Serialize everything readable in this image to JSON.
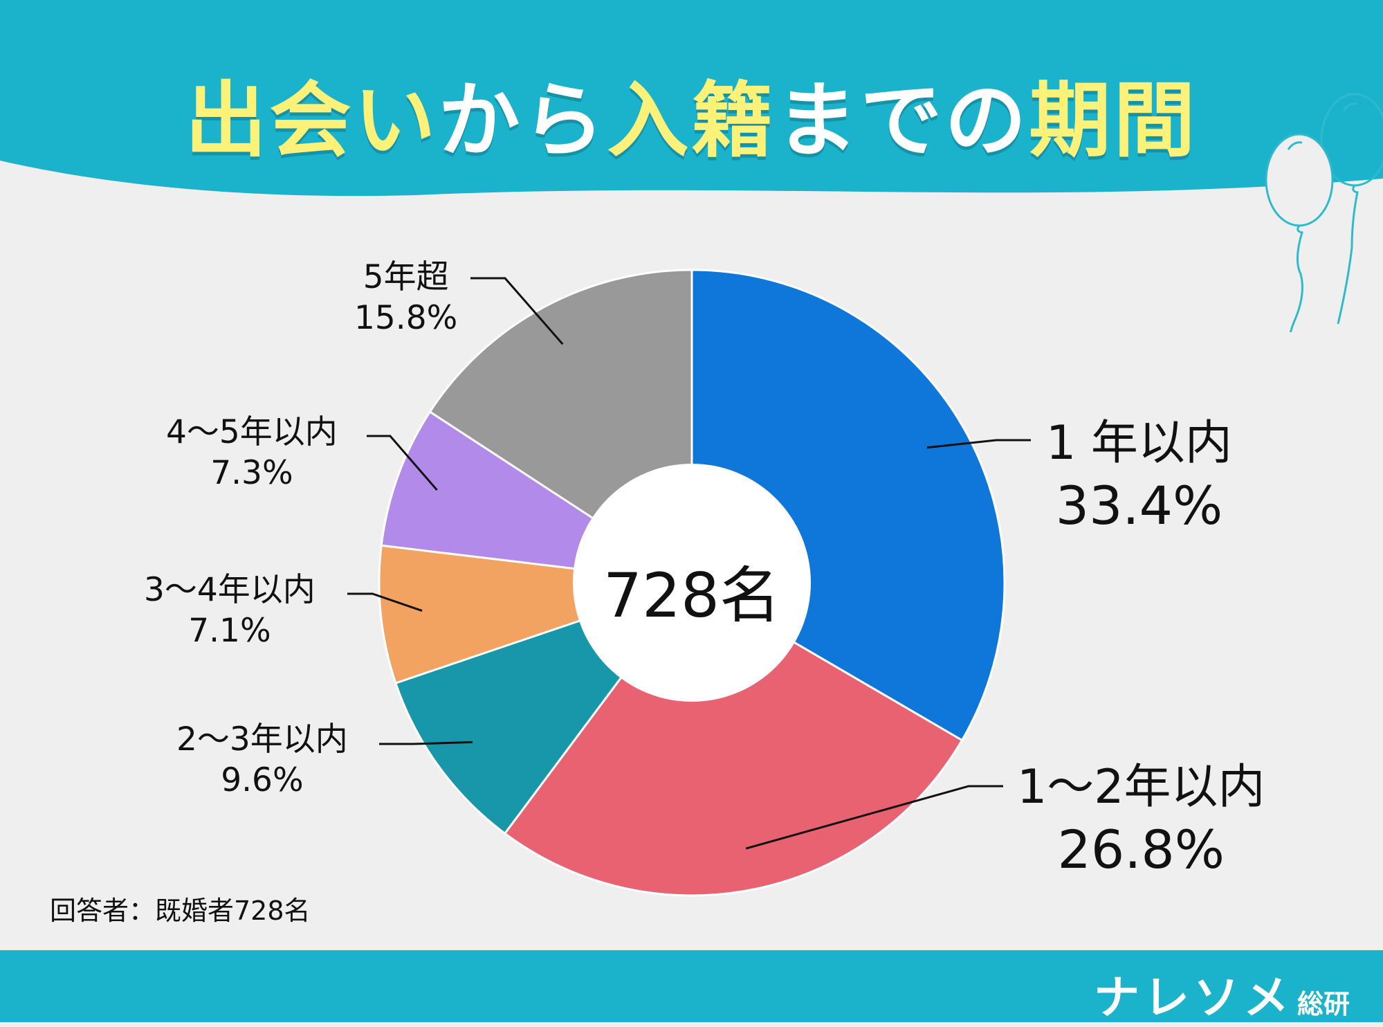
{
  "title_parts": [
    {
      "text": "出会い",
      "emphasis": true
    },
    {
      "text": "から",
      "emphasis": false
    },
    {
      "text": "入籍",
      "emphasis": true
    },
    {
      "text": "までの",
      "emphasis": false
    },
    {
      "text": "期間",
      "emphasis": true
    }
  ],
  "chart_data": {
    "type": "pie",
    "style": "donut",
    "title": "出会いから入籍までの期間",
    "center_label": "728名",
    "slices": [
      {
        "label": "1 年以内",
        "value": 33.4,
        "value_label": "33.4%",
        "color": "#0f77d9"
      },
      {
        "label": "1～2年以内",
        "value": 26.8,
        "value_label": "26.8%",
        "color": "#e96272"
      },
      {
        "label": "2～3年以内",
        "value": 9.6,
        "value_label": "9.6%",
        "color": "#1897aa"
      },
      {
        "label": "3～4年以内",
        "value": 7.1,
        "value_label": "7.1%",
        "color": "#f2a361"
      },
      {
        "label": "4～5年以内",
        "value": 7.3,
        "value_label": "7.3%",
        "color": "#b28aea"
      },
      {
        "label": "5年超",
        "value": 15.8,
        "value_label": "15.8%",
        "color": "#999999"
      }
    ]
  },
  "respondents": "回答者：既婚者728名",
  "brand": {
    "name": "ナレソメ",
    "suffix": "総研"
  },
  "colors": {
    "header": "#1bb3cc",
    "title_emphasis": "#fcf27a",
    "background": "#efefef"
  }
}
